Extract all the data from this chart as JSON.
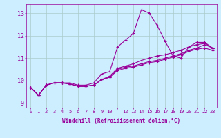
{
  "xlabel": "Windchill (Refroidissement éolien,°C)",
  "bg_color": "#cceeff",
  "line_color": "#990099",
  "grid_color": "#aacccc",
  "xlim": [
    -0.5,
    23.5
  ],
  "ylim": [
    8.8,
    13.4
  ],
  "yticks": [
    9,
    10,
    11,
    12,
    13
  ],
  "xtick_labels": [
    "0",
    "1",
    "2",
    "3",
    "4",
    "5",
    "6",
    "7",
    "8",
    "9",
    "10",
    "",
    "12",
    "13",
    "14",
    "15",
    "16",
    "17",
    "18",
    "19",
    "20",
    "21",
    "22",
    "23"
  ],
  "series": [
    [
      9.7,
      9.35,
      9.8,
      9.9,
      9.9,
      9.9,
      9.8,
      9.8,
      9.9,
      10.3,
      10.4,
      11.5,
      11.8,
      12.1,
      13.15,
      13.0,
      12.45,
      11.75,
      11.1,
      11.0,
      11.5,
      11.7,
      11.7,
      11.45
    ],
    [
      9.7,
      9.35,
      9.8,
      9.9,
      9.9,
      9.85,
      9.75,
      9.75,
      9.8,
      10.05,
      10.15,
      10.5,
      10.6,
      10.65,
      10.75,
      10.85,
      10.9,
      11.0,
      11.1,
      11.2,
      11.35,
      11.45,
      11.6,
      11.45
    ],
    [
      9.7,
      9.35,
      9.8,
      9.9,
      9.9,
      9.85,
      9.75,
      9.75,
      9.8,
      10.05,
      10.2,
      10.55,
      10.65,
      10.75,
      10.9,
      11.0,
      11.1,
      11.15,
      11.25,
      11.35,
      11.5,
      11.6,
      11.65,
      11.45
    ],
    [
      9.7,
      9.35,
      9.8,
      9.9,
      9.9,
      9.85,
      9.75,
      9.75,
      9.8,
      10.05,
      10.15,
      10.45,
      10.55,
      10.6,
      10.7,
      10.8,
      10.85,
      10.95,
      11.05,
      11.15,
      11.3,
      11.4,
      11.45,
      11.35
    ]
  ]
}
